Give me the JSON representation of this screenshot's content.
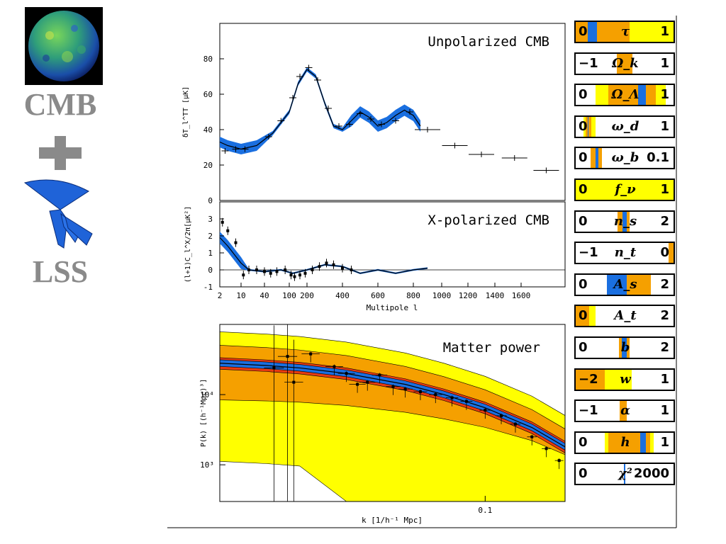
{
  "sidebar": {
    "label_top": "CMB",
    "plus": "+",
    "label_bottom": "LSS"
  },
  "colors": {
    "blue": "#1a6fe0",
    "orange": "#f5a000",
    "yellow": "#ffff00",
    "red": "#e83a10",
    "side_text": "#8a8a8a"
  },
  "chart_data": [
    {
      "type": "line",
      "title": "Unpolarized CMB",
      "ylabel": "δT_l^TT [μK]",
      "xlabel": "",
      "ylim": [
        0,
        100
      ],
      "yticks": [
        "0",
        "20",
        "40",
        "60",
        "80"
      ],
      "x": [
        2,
        5,
        10,
        30,
        60,
        100,
        150,
        200,
        250,
        300,
        350,
        400,
        450,
        500,
        550,
        600,
        650,
        700,
        750,
        800,
        850
      ],
      "series": [
        {
          "values": [
            33,
            31,
            29,
            31,
            38,
            50,
            66,
            74,
            70,
            55,
            42,
            40,
            45,
            50,
            47,
            42,
            44,
            48,
            51,
            48,
            42
          ]
        }
      ],
      "data_points": [
        {
          "x": 4,
          "y": 28
        },
        {
          "x": 8,
          "y": 29
        },
        {
          "x": 15,
          "y": 29
        },
        {
          "x": 50,
          "y": 36
        },
        {
          "x": 80,
          "y": 45
        },
        {
          "x": 120,
          "y": 58
        },
        {
          "x": 160,
          "y": 70
        },
        {
          "x": 210,
          "y": 75
        },
        {
          "x": 260,
          "y": 68
        },
        {
          "x": 320,
          "y": 52
        },
        {
          "x": 380,
          "y": 42
        },
        {
          "x": 440,
          "y": 43
        },
        {
          "x": 500,
          "y": 49
        },
        {
          "x": 560,
          "y": 46
        },
        {
          "x": 620,
          "y": 43
        },
        {
          "x": 700,
          "y": 45
        },
        {
          "x": 780,
          "y": 50
        },
        {
          "x": 900,
          "y": 40
        },
        {
          "x": 1100,
          "y": 31
        },
        {
          "x": 1300,
          "y": 26
        },
        {
          "x": 1550,
          "y": 24
        },
        {
          "x": 1800,
          "y": 17
        }
      ]
    },
    {
      "type": "line",
      "title": "X-polarized CMB",
      "ylabel": "(l+1)C_l^X/2π[μK²]",
      "xlabel": "Multipole l",
      "ylim": [
        -1,
        4
      ],
      "yticks": [
        "-1",
        "0",
        "1",
        "2",
        "3"
      ],
      "xticks": [
        "2",
        "10",
        "40",
        "100",
        "200",
        "400",
        "600",
        "800",
        "1000",
        "1200",
        "1400",
        "1600"
      ],
      "x": [
        2,
        5,
        10,
        20,
        40,
        80,
        120,
        200,
        300,
        400,
        500,
        600,
        700,
        800,
        900
      ],
      "series": [
        {
          "values": [
            1.9,
            1.4,
            0.4,
            0.0,
            -0.1,
            0.0,
            -0.2,
            0.0,
            0.3,
            0.2,
            -0.2,
            0.0,
            -0.2,
            0.0,
            0.1
          ]
        }
      ],
      "data_points": [
        {
          "x": 3,
          "y": 2.8
        },
        {
          "x": 5,
          "y": 2.3
        },
        {
          "x": 8,
          "y": 1.6
        },
        {
          "x": 13,
          "y": -0.3
        },
        {
          "x": 20,
          "y": 0.0
        },
        {
          "x": 30,
          "y": 0.0
        },
        {
          "x": 40,
          "y": -0.1
        },
        {
          "x": 55,
          "y": -0.2
        },
        {
          "x": 70,
          "y": -0.1
        },
        {
          "x": 90,
          "y": 0.0
        },
        {
          "x": 110,
          "y": -0.3
        },
        {
          "x": 130,
          "y": -0.4
        },
        {
          "x": 160,
          "y": -0.3
        },
        {
          "x": 190,
          "y": -0.2
        },
        {
          "x": 230,
          "y": 0.0
        },
        {
          "x": 270,
          "y": 0.2
        },
        {
          "x": 310,
          "y": 0.4
        },
        {
          "x": 350,
          "y": 0.3
        },
        {
          "x": 400,
          "y": 0.1
        },
        {
          "x": 450,
          "y": 0.0
        }
      ]
    },
    {
      "type": "line",
      "title": "Matter power",
      "ylabel": "P(k) [(h⁻¹Mpc)³]",
      "xlabel": "k [1/h⁻¹ Mpc]",
      "x_scale": "log",
      "y_scale": "log",
      "xlim": [
        0.01,
        0.2
      ],
      "ylim": [
        300,
        100000
      ],
      "xticks": [
        "0.1"
      ],
      "yticks": [
        "10³",
        "10⁴"
      ],
      "x": [
        0.01,
        0.015,
        0.02,
        0.03,
        0.05,
        0.07,
        0.1,
        0.15,
        0.2
      ],
      "series": [
        {
          "values": [
            28000,
            26000,
            24000,
            20000,
            14000,
            10000,
            6500,
            3400,
            1800
          ]
        }
      ],
      "data_points": [
        {
          "x": 0.016,
          "y": 24000
        },
        {
          "x": 0.018,
          "y": 35000
        },
        {
          "x": 0.019,
          "y": 15000
        },
        {
          "x": 0.022,
          "y": 38000
        },
        {
          "x": 0.027,
          "y": 25000
        },
        {
          "x": 0.03,
          "y": 20000
        },
        {
          "x": 0.033,
          "y": 14000
        },
        {
          "x": 0.036,
          "y": 15000
        },
        {
          "x": 0.04,
          "y": 19000
        },
        {
          "x": 0.045,
          "y": 13000
        },
        {
          "x": 0.05,
          "y": 12000
        },
        {
          "x": 0.057,
          "y": 11000
        },
        {
          "x": 0.065,
          "y": 10000
        },
        {
          "x": 0.075,
          "y": 9000
        },
        {
          "x": 0.085,
          "y": 8000
        },
        {
          "x": 0.1,
          "y": 6000
        },
        {
          "x": 0.115,
          "y": 5000
        },
        {
          "x": 0.13,
          "y": 3800
        },
        {
          "x": 0.15,
          "y": 2500
        },
        {
          "x": 0.17,
          "y": 1700
        },
        {
          "x": 0.19,
          "y": 1150
        }
      ]
    }
  ],
  "parameter_panels": [
    {
      "symbol": "τ",
      "min": "0",
      "max": "1",
      "bands": [
        {
          "from": 0.0,
          "to": 1.0,
          "color": "yellow"
        },
        {
          "from": 0.0,
          "to": 0.55,
          "color": "orange"
        },
        {
          "from": 0.12,
          "to": 0.22,
          "color": "blue"
        }
      ]
    },
    {
      "symbol": "Ω_k",
      "min": "−1",
      "max": "1",
      "bands": [
        {
          "from": 0.42,
          "to": 0.58,
          "color": "orange"
        }
      ]
    },
    {
      "symbol": "Ω_Λ",
      "min": "0",
      "max": "1",
      "bands": [
        {
          "from": 0.2,
          "to": 0.92,
          "color": "yellow"
        },
        {
          "from": 0.33,
          "to": 0.82,
          "color": "orange"
        },
        {
          "from": 0.64,
          "to": 0.72,
          "color": "blue"
        }
      ]
    },
    {
      "symbol": "ω_d",
      "min": "0",
      "max": "1",
      "bands": [
        {
          "from": 0.08,
          "to": 0.2,
          "color": "yellow"
        },
        {
          "from": 0.1,
          "to": 0.16,
          "color": "orange"
        },
        {
          "from": 0.12,
          "to": 0.13,
          "color": "blue"
        }
      ]
    },
    {
      "symbol": "ω_b",
      "min": "0",
      "max": "0.1",
      "bands": [
        {
          "from": 0.15,
          "to": 0.27,
          "color": "orange"
        },
        {
          "from": 0.2,
          "to": 0.23,
          "color": "blue"
        }
      ]
    },
    {
      "symbol": "f_ν",
      "min": "0",
      "max": "1",
      "bands": [
        {
          "from": 0.0,
          "to": 1.0,
          "color": "yellow"
        }
      ]
    },
    {
      "symbol": "n_s",
      "min": "0",
      "max": "2",
      "bands": [
        {
          "from": 0.43,
          "to": 0.55,
          "color": "orange"
        },
        {
          "from": 0.48,
          "to": 0.52,
          "color": "blue"
        }
      ]
    },
    {
      "symbol": "n_t",
      "min": "−1",
      "max": "0",
      "bands": [
        {
          "from": 0.95,
          "to": 1.0,
          "color": "orange"
        }
      ]
    },
    {
      "symbol": "A_s",
      "min": "0",
      "max": "2",
      "bands": [
        {
          "from": 0.32,
          "to": 0.77,
          "color": "orange"
        },
        {
          "from": 0.32,
          "to": 0.52,
          "color": "blue"
        }
      ]
    },
    {
      "symbol": "A_t",
      "min": "0",
      "max": "2",
      "bands": [
        {
          "from": 0.0,
          "to": 0.2,
          "color": "yellow"
        },
        {
          "from": 0.0,
          "to": 0.14,
          "color": "orange"
        }
      ]
    },
    {
      "symbol": "b",
      "min": "0",
      "max": "2",
      "bands": [
        {
          "from": 0.44,
          "to": 0.55,
          "color": "orange"
        },
        {
          "from": 0.47,
          "to": 0.52,
          "color": "blue"
        }
      ]
    },
    {
      "symbol": "w",
      "min": "−2",
      "max": "1",
      "bands": [
        {
          "from": 0.0,
          "to": 0.57,
          "color": "yellow"
        },
        {
          "from": 0.0,
          "to": 0.3,
          "color": "orange"
        }
      ]
    },
    {
      "symbol": "α",
      "min": "−1",
      "max": "1",
      "bands": [
        {
          "from": 0.45,
          "to": 0.52,
          "color": "orange"
        }
      ]
    },
    {
      "symbol": "h",
      "min": "0",
      "max": "1",
      "bands": [
        {
          "from": 0.3,
          "to": 0.8,
          "color": "yellow"
        },
        {
          "from": 0.33,
          "to": 0.76,
          "color": "orange"
        },
        {
          "from": 0.66,
          "to": 0.72,
          "color": "blue"
        }
      ]
    },
    {
      "symbol": "χ²",
      "min": "0",
      "max": "2000",
      "bands": [
        {
          "from": 0.49,
          "to": 0.51,
          "color": "blue"
        }
      ]
    }
  ]
}
